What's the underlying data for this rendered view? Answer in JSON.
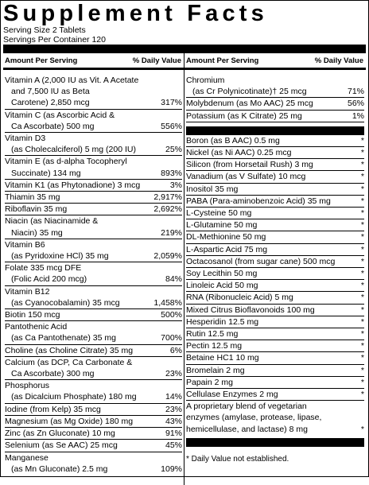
{
  "title": "Supplement Facts",
  "serving_size": "Serving Size 2 Tablets",
  "servings_per_container": "Servings Per Container 120",
  "left_header": {
    "amount": "Amount Per Serving",
    "dv": "% Daily Value"
  },
  "right_header": {
    "amount": "Amount Per Serving",
    "dv": "% Daily Value"
  },
  "left_rows": [
    {
      "lines": [
        "Vitamin A (2,000 IU as Vit. A Acetate",
        "and 7,500 IU as Beta",
        "Carotene) 2,850 mcg"
      ],
      "dv": "317%"
    },
    {
      "lines": [
        "Vitamin C (as Ascorbic Acid &",
        "Ca Ascorbate) 500 mg"
      ],
      "dv": "556%"
    },
    {
      "lines": [
        "Vitamin D3",
        "(as Cholecalciferol) 5 mg (200 IU)"
      ],
      "dv": "25%"
    },
    {
      "lines": [
        "Vitamin E (as d-alpha Tocopheryl",
        "Succinate) 134 mg"
      ],
      "dv": "893%"
    },
    {
      "lines": [
        "Vitamin K1 (as Phytonadione) 3 mcg"
      ],
      "dv": "3%"
    },
    {
      "lines": [
        "Thiamin 35 mg"
      ],
      "dv": "2,917%"
    },
    {
      "lines": [
        "Riboflavin 35 mg"
      ],
      "dv": "2,692%"
    },
    {
      "lines": [
        "Niacin (as Niacinamide &",
        "Niacin) 35 mg"
      ],
      "dv": "219%"
    },
    {
      "lines": [
        "Vitamin B6",
        "(as Pyridoxine HCl) 35 mg"
      ],
      "dv": "2,059%"
    },
    {
      "lines": [
        "Folate 335 mcg DFE",
        "(Folic Acid 200 mcg)"
      ],
      "dv": "84%"
    },
    {
      "lines": [
        "Vitamin B12",
        "(as Cyanocobalamin) 35 mcg"
      ],
      "dv": "1,458%"
    },
    {
      "lines": [
        "Biotin 150 mcg"
      ],
      "dv": "500%"
    },
    {
      "lines": [
        "Pantothenic Acid",
        "(as Ca Pantothenate) 35 mg"
      ],
      "dv": "700%"
    },
    {
      "lines": [
        "Choline (as Choline Citrate) 35 mg"
      ],
      "dv": "6%"
    },
    {
      "lines": [
        "Calcium (as DCP, Ca Carbonate &",
        "Ca Ascorbate) 300 mg"
      ],
      "dv": "23%"
    },
    {
      "lines": [
        "Phosphorus",
        "(as Dicalcium Phosphate) 180 mg"
      ],
      "dv": "14%"
    },
    {
      "lines": [
        "Iodine (from Kelp) 35 mcg"
      ],
      "dv": "23%"
    },
    {
      "lines": [
        "Magnesium (as Mg Oxide) 180 mg"
      ],
      "dv": "43%"
    },
    {
      "lines": [
        "Zinc (as Zn Gluconate) 10 mg"
      ],
      "dv": "91%"
    },
    {
      "lines": [
        "Selenium (as Se AAC) 25 mcg"
      ],
      "dv": "45%"
    },
    {
      "lines": [
        "Manganese",
        "(as Mn Gluconate) 2.5 mg"
      ],
      "dv": "109%"
    }
  ],
  "right_rows_1": [
    {
      "lines": [
        "Chromium",
        "(as Cr Polynicotinate)† 25 mcg"
      ],
      "dv": "71%"
    },
    {
      "lines": [
        "Molybdenum (as Mo AAC) 25 mcg"
      ],
      "dv": "56%"
    },
    {
      "lines": [
        "Potassium (as K Citrate) 25 mg"
      ],
      "dv": "1%"
    }
  ],
  "right_rows_2": [
    {
      "lines": [
        "Boron (as B AAC) 0.5 mg"
      ],
      "dv": "*"
    },
    {
      "lines": [
        "Nickel (as Ni AAC) 0.25 mcg"
      ],
      "dv": "*"
    },
    {
      "lines": [
        "Silicon (from Horsetail Rush) 3 mg"
      ],
      "dv": "*"
    },
    {
      "lines": [
        "Vanadium (as V Sulfate) 10 mcg"
      ],
      "dv": "*"
    },
    {
      "lines": [
        "Inositol 35 mg"
      ],
      "dv": "*"
    },
    {
      "lines": [
        "PABA (Para-aminobenzoic Acid) 35 mg"
      ],
      "dv": "*"
    },
    {
      "lines": [
        "L-Cysteine 50 mg"
      ],
      "dv": "*"
    },
    {
      "lines": [
        "L-Glutamine 50 mg"
      ],
      "dv": "*"
    },
    {
      "lines": [
        "DL-Methionine 50 mg"
      ],
      "dv": "*"
    },
    {
      "lines": [
        "L-Aspartic Acid 75 mg"
      ],
      "dv": "*"
    },
    {
      "lines": [
        "Octacosanol (from sugar cane) 500 mcg"
      ],
      "dv": "*"
    },
    {
      "lines": [
        "Soy Lecithin 50 mg"
      ],
      "dv": "*"
    },
    {
      "lines": [
        "Linoleic Acid 50 mg"
      ],
      "dv": "*"
    },
    {
      "lines": [
        "RNA (Ribonucleic Acid) 5 mg"
      ],
      "dv": "*"
    },
    {
      "lines": [
        "Mixed Citrus Bioflavonoids 100 mg"
      ],
      "dv": "*"
    },
    {
      "lines": [
        "Hesperidin 12.5 mg"
      ],
      "dv": "*"
    },
    {
      "lines": [
        "Rutin 12.5 mg"
      ],
      "dv": "*"
    },
    {
      "lines": [
        "Pectin 12.5 mg"
      ],
      "dv": "*"
    },
    {
      "lines": [
        "Betaine HC1 10 mg"
      ],
      "dv": "*"
    },
    {
      "lines": [
        "Bromelain 2 mg"
      ],
      "dv": "*"
    },
    {
      "lines": [
        "Papain 2 mg"
      ],
      "dv": "*"
    },
    {
      "lines": [
        "Cellulase Enzymes 2 mg"
      ],
      "dv": "*"
    },
    {
      "lines": [
        "A proprietary blend of vegetarian",
        "enzymes  (amylase, protease, lipase,",
        "hemicellulase, and lactase)  8 mg"
      ],
      "dv": "*"
    }
  ],
  "footnote": "* Daily Value not established."
}
